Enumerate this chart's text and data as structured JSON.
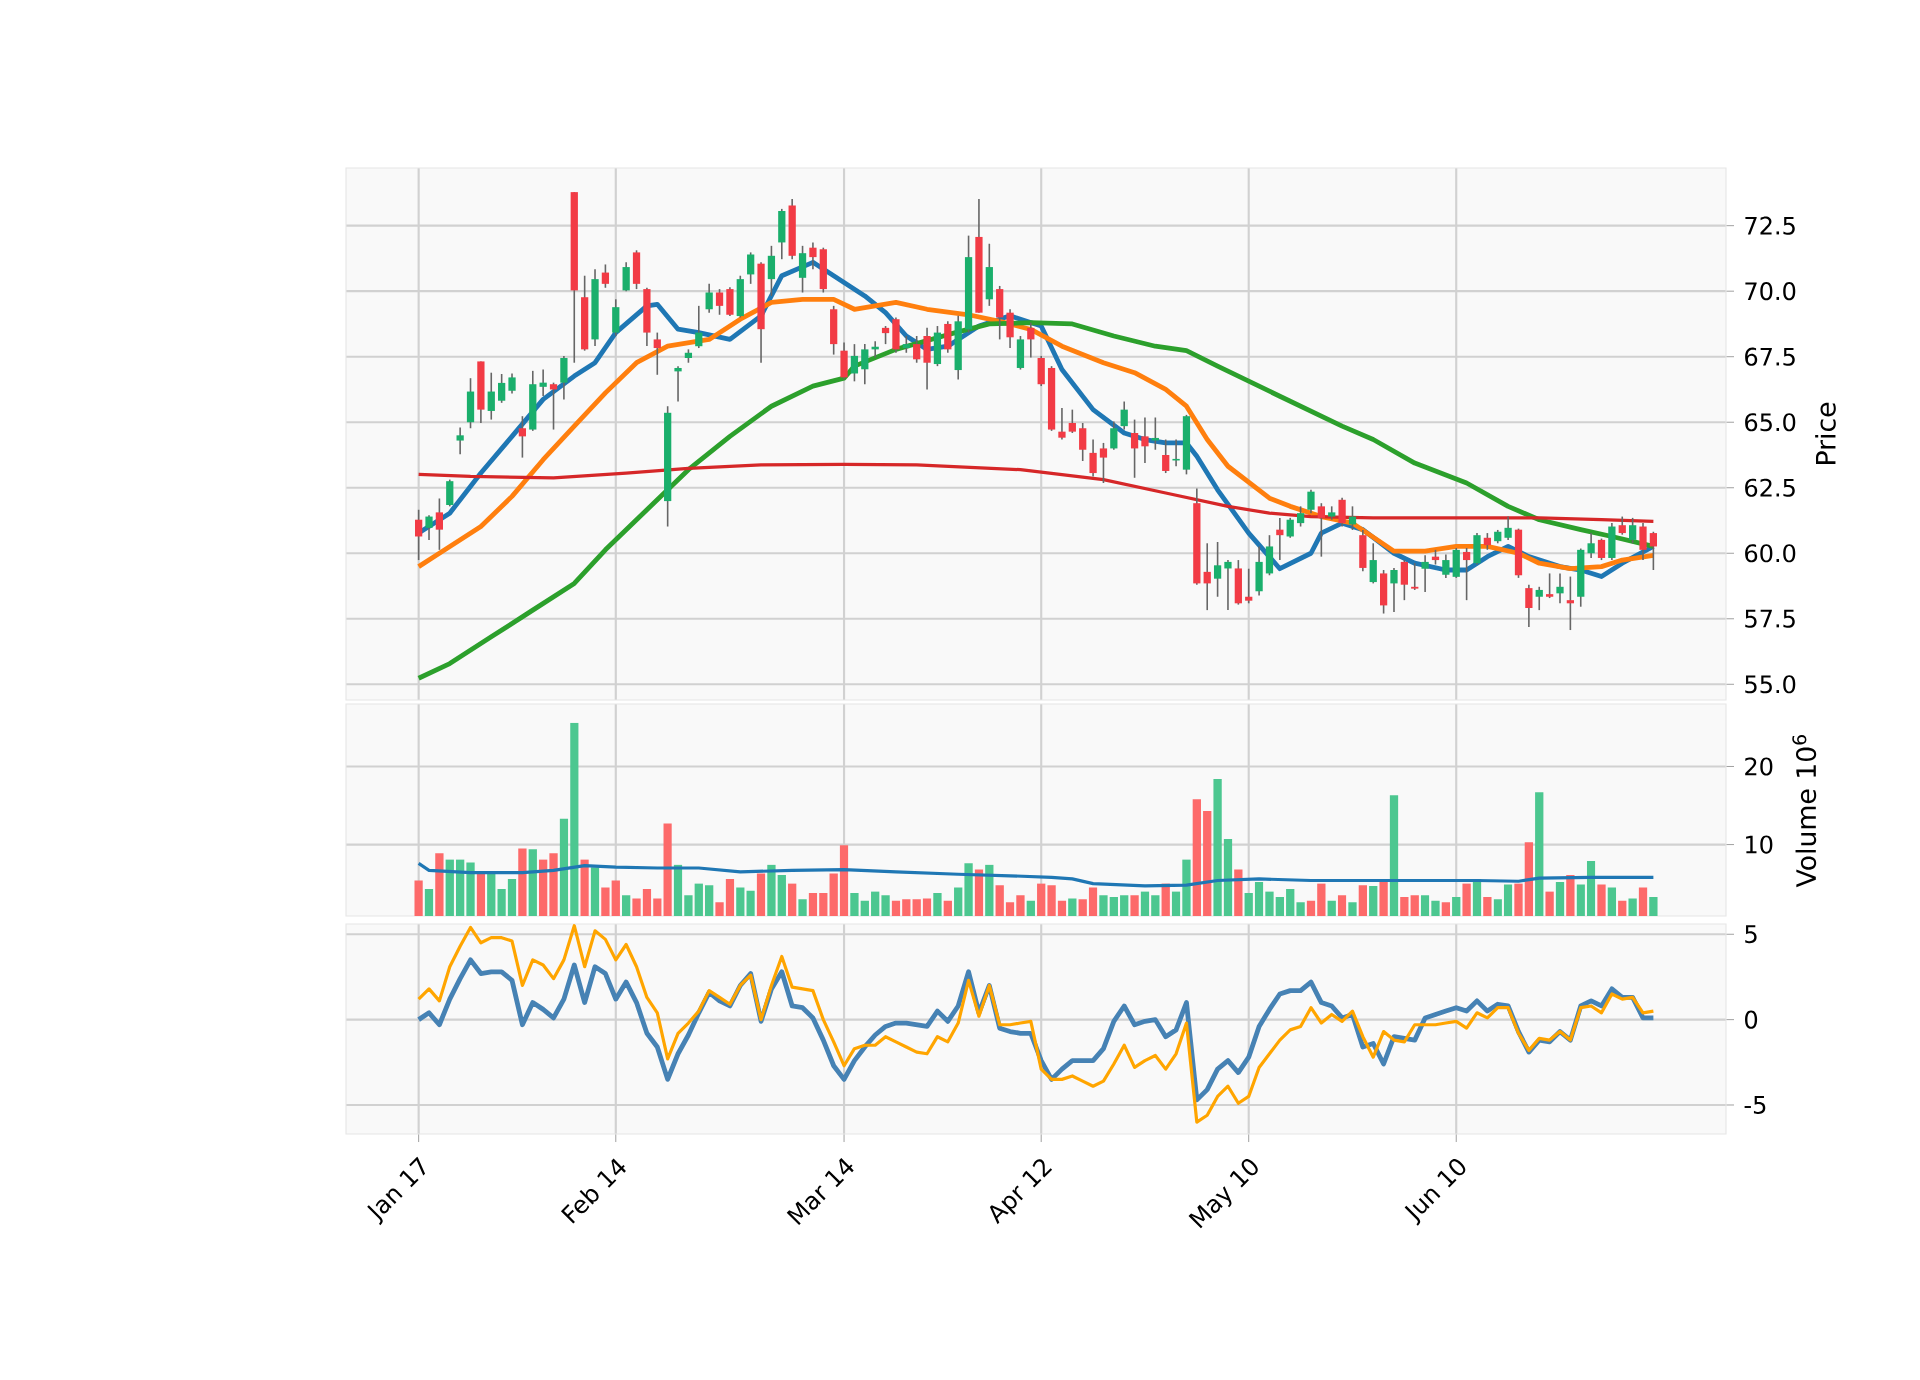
{
  "chart_data": [
    {
      "type": "candlestick",
      "ylabel": "Price",
      "tick_labels": "y",
      "grid": true,
      "categories": [
        null,
        null,
        null,
        null,
        null,
        null,
        null,
        null,
        null,
        null,
        null,
        null,
        null,
        null,
        null,
        null,
        null,
        null,
        null,
        null,
        null,
        null,
        null,
        null,
        null,
        null,
        null,
        null,
        null,
        null,
        null,
        null,
        null,
        null,
        null,
        null,
        null,
        null,
        null,
        null,
        null,
        null,
        null,
        null,
        null,
        null,
        null,
        null,
        null,
        null,
        null,
        null,
        null,
        null,
        null,
        null,
        null,
        null,
        null,
        null,
        null,
        null,
        null,
        null,
        null,
        null,
        null,
        null,
        null,
        null,
        null,
        null,
        null,
        null,
        null,
        null,
        null,
        null,
        null,
        null,
        null,
        null,
        null,
        null,
        null,
        null,
        null,
        null,
        null,
        null,
        null,
        null,
        null,
        null,
        null,
        null,
        null,
        null,
        null,
        null,
        null,
        null,
        null,
        null,
        null,
        null,
        null,
        null,
        null,
        null,
        null,
        null,
        null,
        null,
        null,
        null,
        null,
        null,
        null,
        null
      ],
      "ylim": [
        54.4,
        74.7
      ],
      "yticks": [
        {
          "value": 55,
          "label": "55.0"
        },
        57.5,
        {
          "value": 60,
          "label": "60.0"
        },
        62.5,
        {
          "value": 65,
          "label": "65.0"
        },
        67.5,
        {
          "value": 70,
          "label": "70.0"
        },
        72.5
      ],
      "ohlc": [
        [
          61.28,
          61.66,
          59.74,
          60.64
        ],
        [
          60.97,
          61.45,
          60.51,
          61.4
        ],
        [
          61.56,
          62.09,
          60.13,
          60.9
        ],
        [
          61.84,
          62.81,
          61.79,
          62.75
        ],
        [
          64.3,
          64.8,
          63.78,
          64.5
        ],
        [
          65.0,
          66.68,
          64.77,
          66.17
        ],
        [
          67.32,
          67.32,
          64.97,
          65.48
        ],
        [
          65.43,
          66.89,
          65.1,
          66.17
        ],
        [
          65.82,
          66.84,
          65.74,
          66.5
        ],
        [
          66.2,
          66.86,
          66.1,
          66.71
        ],
        [
          64.77,
          65.23,
          63.65,
          64.46
        ],
        [
          64.72,
          66.96,
          64.67,
          66.45
        ],
        [
          66.35,
          67.01,
          66.0,
          66.51
        ],
        [
          66.45,
          66.51,
          64.72,
          66.25
        ],
        [
          66.51,
          67.53,
          65.87,
          67.45
        ],
        [
          73.78,
          73.78,
          67.27,
          70.03
        ],
        [
          69.77,
          70.59,
          67.73,
          67.78
        ],
        [
          68.16,
          70.84,
          67.91,
          70.46
        ],
        [
          70.71,
          71.02,
          70.13,
          70.28
        ],
        [
          68.42,
          69.69,
          68.3,
          69.39
        ],
        [
          70.03,
          71.1,
          70.0,
          70.92
        ],
        [
          71.48,
          71.56,
          70.08,
          70.28
        ],
        [
          70.08,
          70.13,
          67.91,
          68.42
        ],
        [
          68.16,
          68.42,
          66.81,
          67.83
        ],
        [
          61.99,
          65.61,
          61.02,
          65.36
        ],
        [
          66.94,
          67.14,
          65.79,
          67.07
        ],
        [
          67.45,
          67.78,
          67.27,
          67.65
        ],
        [
          67.9,
          69.44,
          67.83,
          68.42
        ],
        [
          69.31,
          70.28,
          69.18,
          69.95
        ],
        [
          69.95,
          70.08,
          69.1,
          69.44
        ],
        [
          70.08,
          70.15,
          69.05,
          69.1
        ],
        [
          69.05,
          70.59,
          69.0,
          70.46
        ],
        [
          70.64,
          71.48,
          70.28,
          71.4
        ],
        [
          71.05,
          71.1,
          67.27,
          68.55
        ],
        [
          70.46,
          71.73,
          69.82,
          71.35
        ],
        [
          71.86,
          73.14,
          71.22,
          73.06
        ],
        [
          73.27,
          73.52,
          71.22,
          71.35
        ],
        [
          70.51,
          71.73,
          69.95,
          71.45
        ],
        [
          71.66,
          71.86,
          70.84,
          71.3
        ],
        [
          71.6,
          71.66,
          69.95,
          70.08
        ],
        [
          69.31,
          69.44,
          67.58,
          67.98
        ],
        [
          67.73,
          68.04,
          66.63,
          66.71
        ],
        [
          66.86,
          67.98,
          66.56,
          67.53
        ],
        [
          67.02,
          67.98,
          66.45,
          67.78
        ],
        [
          67.78,
          68.09,
          67.47,
          67.88
        ],
        [
          68.6,
          68.67,
          67.98,
          68.4
        ],
        [
          68.93,
          69.0,
          67.65,
          67.78
        ],
        [
          67.83,
          68.29,
          67.65,
          67.98
        ],
        [
          67.98,
          68.29,
          67.27,
          67.4
        ],
        [
          68.29,
          68.6,
          66.25,
          67.27
        ],
        [
          67.22,
          68.67,
          67.14,
          68.42
        ],
        [
          68.75,
          68.85,
          67.65,
          67.78
        ],
        [
          66.99,
          69.06,
          66.63,
          68.85
        ],
        [
          68.54,
          72.12,
          68.42,
          71.3
        ],
        [
          72.07,
          73.52,
          69.18,
          69.18
        ],
        [
          69.69,
          71.81,
          69.44,
          70.92
        ],
        [
          70.08,
          70.2,
          68.16,
          69.0
        ],
        [
          69.18,
          69.31,
          67.83,
          68.24
        ],
        [
          67.07,
          68.29,
          67.01,
          68.16
        ],
        [
          68.6,
          68.8,
          67.47,
          68.16
        ],
        [
          67.45,
          67.53,
          66.38,
          66.45
        ],
        [
          67.07,
          67.14,
          64.67,
          64.72
        ],
        [
          64.64,
          65.54,
          64.34,
          64.41
        ],
        [
          64.97,
          65.48,
          64.59,
          64.64
        ],
        [
          64.77,
          64.97,
          63.52,
          63.95
        ],
        [
          63.83,
          64.34,
          62.93,
          63.06
        ],
        [
          64.0,
          64.21,
          62.68,
          63.65
        ],
        [
          64.0,
          65.03,
          63.95,
          64.77
        ],
        [
          64.85,
          65.79,
          64.72,
          65.48
        ],
        [
          64.59,
          65.1,
          62.88,
          64.0
        ],
        [
          64.46,
          65.18,
          63.44,
          64.08
        ],
        [
          64.3,
          65.18,
          63.95,
          64.4
        ],
        [
          63.75,
          64.34,
          63.06,
          63.14
        ],
        [
          63.54,
          64.34,
          63.32,
          63.6
        ],
        [
          63.19,
          65.28,
          63.01,
          65.23
        ],
        [
          61.91,
          62.47,
          58.8,
          58.85
        ],
        [
          59.29,
          60.38,
          57.83,
          58.85
        ],
        [
          59.03,
          60.43,
          58.34,
          59.54
        ],
        [
          59.42,
          59.74,
          57.83,
          59.67
        ],
        [
          59.42,
          59.74,
          58.04,
          58.09
        ],
        [
          58.34,
          59.41,
          58.09,
          58.19
        ],
        [
          58.55,
          60.26,
          58.39,
          59.67
        ],
        [
          59.23,
          60.69,
          59.16,
          60.26
        ],
        [
          60.9,
          61.35,
          59.74,
          60.69
        ],
        [
          60.64,
          61.35,
          60.59,
          61.28
        ],
        [
          61.15,
          61.79,
          61.02,
          61.53
        ],
        [
          61.66,
          62.42,
          61.53,
          62.35
        ],
        [
          61.79,
          61.91,
          59.87,
          61.35
        ],
        [
          61.4,
          61.79,
          61.28,
          61.56
        ],
        [
          62.04,
          62.12,
          61.02,
          61.15
        ],
        [
          61.1,
          61.79,
          60.89,
          61.4
        ],
        [
          60.69,
          60.89,
          59.31,
          59.44
        ],
        [
          58.9,
          60.38,
          58.85,
          59.74
        ],
        [
          59.23,
          59.36,
          57.7,
          58.01
        ],
        [
          58.85,
          59.44,
          57.76,
          59.36
        ],
        [
          59.67,
          59.74,
          58.21,
          58.8
        ],
        [
          58.72,
          59.62,
          58.6,
          58.65
        ],
        [
          59.41,
          59.92,
          58.52,
          59.67
        ],
        [
          59.87,
          60.13,
          59.57,
          59.74
        ],
        [
          59.18,
          59.95,
          59.06,
          59.74
        ],
        [
          59.1,
          60.2,
          59.06,
          60.13
        ],
        [
          60.05,
          60.2,
          58.21,
          59.74
        ],
        [
          59.62,
          60.77,
          59.57,
          60.69
        ],
        [
          60.59,
          60.77,
          60.13,
          60.31
        ],
        [
          60.46,
          60.89,
          60.38,
          60.82
        ],
        [
          60.59,
          61.4,
          60.51,
          60.97
        ],
        [
          60.9,
          60.94,
          59.06,
          59.16
        ],
        [
          58.67,
          58.8,
          57.19,
          57.91
        ],
        [
          58.34,
          58.72,
          57.83,
          58.6
        ],
        [
          58.44,
          59.23,
          58.29,
          58.34
        ],
        [
          58.47,
          59.23,
          58.09,
          58.72
        ],
        [
          58.21,
          59.11,
          57.07,
          58.09
        ],
        [
          58.34,
          60.18,
          57.96,
          60.13
        ],
        [
          60.0,
          60.77,
          59.82,
          60.38
        ],
        [
          60.51,
          60.56,
          59.74,
          59.82
        ],
        [
          59.82,
          61.15,
          59.74,
          61.02
        ],
        [
          61.07,
          61.4,
          60.71,
          60.77
        ],
        [
          60.51,
          61.35,
          60.38,
          61.07
        ],
        [
          61.02,
          61.15,
          59.74,
          60.13
        ],
        [
          60.77,
          60.82,
          59.36,
          60.26
        ]
      ],
      "series": [
        {
          "type": "line",
          "color": "#1f77b4",
          "values": [
            60.77,
            null,
            null,
            61.53,
            null,
            null,
            63.06,
            null,
            null,
            64.46,
            null,
            null,
            65.87,
            null,
            null,
            66.76,
            null,
            67.27,
            null,
            68.42,
            null,
            null,
            69.44,
            69.5,
            null,
            68.55,
            null,
            68.42,
            null,
            null,
            68.16,
            null,
            null,
            69.06,
            null,
            70.59,
            null,
            null,
            71.1,
            null,
            null,
            70.33,
            null,
            69.82,
            null,
            69.18,
            null,
            68.29,
            null,
            67.78,
            null,
            67.9,
            null,
            null,
            68.67,
            null,
            null,
            69.06,
            null,
            null,
            68.67,
            null,
            67.01,
            null,
            null,
            65.48,
            null,
            null,
            64.59,
            null,
            64.34,
            null,
            64.21,
            null,
            64.21,
            63.7,
            null,
            62.42,
            null,
            null,
            60.77,
            null,
            null,
            59.41,
            null,
            null,
            60.0,
            60.77,
            null,
            61.15,
            null,
            60.9,
            null,
            null,
            60.0,
            null,
            59.62,
            null,
            null,
            59.36,
            null,
            59.36,
            null,
            59.87,
            null,
            60.26,
            null,
            59.87,
            null,
            null,
            59.49,
            null,
            59.36,
            null,
            59.11,
            null,
            59.62,
            null,
            null,
            60.26
          ]
        },
        {
          "type": "line",
          "color": "#ff7f0e",
          "values": [
            59.49,
            null,
            60.0,
            null,
            null,
            null,
            61.02,
            null,
            null,
            62.17,
            null,
            null,
            63.57,
            null,
            null,
            64.85,
            null,
            null,
            66.12,
            null,
            null,
            67.27,
            null,
            null,
            67.9,
            null,
            null,
            null,
            68.16,
            null,
            null,
            68.93,
            null,
            null,
            69.57,
            null,
            null,
            69.69,
            null,
            null,
            69.69,
            null,
            69.31,
            null,
            null,
            null,
            69.57,
            null,
            null,
            69.31,
            null,
            null,
            null,
            69.1,
            null,
            null,
            68.85,
            null,
            null,
            68.54,
            null,
            null,
            67.9,
            null,
            null,
            null,
            67.27,
            null,
            null,
            66.89,
            null,
            null,
            66.25,
            null,
            65.61,
            null,
            64.34,
            null,
            63.32,
            null,
            null,
            null,
            62.1,
            null,
            61.79,
            null,
            null,
            61.4,
            null,
            null,
            61.15,
            null,
            null,
            null,
            60.08,
            null,
            null,
            60.08,
            null,
            null,
            60.26,
            null,
            null,
            60.26,
            null,
            null,
            60.0,
            null,
            59.62,
            null,
            null,
            59.41,
            null,
            null,
            59.49,
            null,
            59.74,
            null,
            null,
            59.92
          ]
        },
        {
          "type": "line",
          "color": "#2ca02c",
          "values": [
            55.23,
            null,
            null,
            55.79,
            null,
            null,
            null,
            56.81,
            null,
            null,
            null,
            57.83,
            null,
            null,
            null,
            58.85,
            null,
            null,
            60.13,
            null,
            null,
            null,
            61.66,
            null,
            null,
            null,
            63.19,
            null,
            null,
            null,
            64.46,
            null,
            null,
            null,
            65.61,
            null,
            null,
            null,
            66.38,
            null,
            null,
            66.68,
            67.14,
            null,
            null,
            null,
            67.78,
            null,
            null,
            null,
            null,
            68.34,
            null,
            null,
            null,
            68.75,
            null,
            null,
            null,
            68.8,
            null,
            null,
            null,
            68.75,
            null,
            null,
            null,
            68.29,
            null,
            null,
            null,
            67.9,
            null,
            null,
            67.73,
            null,
            null,
            67.14,
            null,
            66.76,
            null,
            null,
            null,
            65.99,
            null,
            null,
            null,
            null,
            null,
            64.85,
            null,
            null,
            64.34,
            null,
            null,
            null,
            63.44,
            null,
            null,
            null,
            null,
            62.68,
            null,
            null,
            null,
            61.79,
            null,
            null,
            61.28,
            null,
            null,
            null,
            60.9,
            null,
            null,
            60.64,
            null,
            null,
            null,
            60.26
          ]
        },
        {
          "type": "line",
          "color": "#d62728",
          "values": [
            63.01,
            null,
            null,
            null,
            null,
            62.93,
            null,
            null,
            null,
            null,
            null,
            null,
            null,
            62.88,
            null,
            null,
            null,
            null,
            null,
            null,
            63.06,
            null,
            null,
            null,
            null,
            null,
            63.24,
            null,
            null,
            null,
            null,
            null,
            null,
            63.37,
            null,
            null,
            null,
            null,
            null,
            null,
            null,
            63.39,
            null,
            null,
            null,
            null,
            null,
            null,
            63.37,
            null,
            null,
            null,
            null,
            null,
            null,
            null,
            null,
            null,
            63.19,
            null,
            null,
            null,
            null,
            null,
            null,
            null,
            62.81,
            null,
            null,
            null,
            null,
            null,
            62.3,
            null,
            null,
            null,
            null,
            null,
            61.79,
            null,
            null,
            null,
            61.53,
            null,
            null,
            null,
            61.4,
            null,
            null,
            null,
            null,
            null,
            61.35,
            null,
            null,
            null,
            null,
            null,
            null,
            null,
            null,
            null,
            61.35,
            null,
            null,
            null,
            null,
            null,
            61.35,
            null,
            null,
            null,
            null,
            null,
            61.28,
            null,
            null,
            null,
            null,
            61.22
          ]
        }
      ]
    },
    {
      "type": "bar",
      "ylabel": "Volume  10$^{6}$",
      "tick_labels": "y",
      "grid": true,
      "categories": [
        null,
        null,
        null,
        null,
        null,
        null,
        null,
        null,
        null,
        null,
        null,
        null,
        null,
        null,
        null,
        null,
        null,
        null,
        null,
        null,
        null,
        null,
        null,
        null,
        null,
        null,
        null,
        null,
        null,
        null,
        null,
        null,
        null,
        null,
        null,
        null,
        null,
        null,
        null,
        null,
        null,
        null,
        null,
        null,
        null,
        null,
        null,
        null,
        null,
        null,
        null,
        null,
        null,
        null,
        null,
        null,
        null,
        null,
        null,
        null,
        null,
        null,
        null,
        null,
        null,
        null,
        null,
        null,
        null,
        null,
        null,
        null,
        null,
        null,
        null,
        null,
        null,
        null,
        null,
        null,
        null,
        null,
        null,
        null,
        null,
        null,
        null,
        null,
        null,
        null,
        null,
        null,
        null,
        null,
        null,
        null,
        null,
        null,
        null,
        null,
        null,
        null,
        null,
        null,
        null,
        null,
        null,
        null,
        null,
        null,
        null,
        null,
        null,
        null,
        null,
        null,
        null,
        null,
        null,
        null
      ],
      "ylim": [
        0.85,
        28
      ],
      "yticks": [
        10,
        20
      ],
      "values": [
        5.4,
        4.3,
        8.9,
        8.1,
        8.1,
        7.7,
        6.6,
        6.6,
        4.3,
        5.6,
        9.5,
        9.4,
        8.1,
        8.9,
        13.3,
        25.6,
        8.1,
        7.1,
        4.5,
        5.4,
        3.5,
        3.1,
        4.3,
        3.1,
        12.7,
        7.4,
        3.5,
        5.0,
        4.8,
        2.6,
        5.6,
        4.5,
        4.1,
        6.3,
        7.4,
        6.1,
        5.0,
        3.0,
        3.8,
        3.8,
        6.3,
        9.9,
        3.8,
        2.8,
        4.0,
        3.5,
        2.8,
        3.0,
        3.0,
        3.1,
        3.8,
        2.8,
        4.5,
        7.6,
        6.8,
        7.4,
        4.8,
        2.6,
        3.5,
        2.8,
        5.0,
        4.8,
        2.8,
        3.1,
        3.0,
        4.5,
        3.5,
        3.3,
        3.5,
        3.5,
        4.0,
        3.5,
        5.0,
        4.0,
        8.1,
        15.8,
        14.3,
        18.4,
        10.7,
        6.8,
        3.8,
        5.2,
        4.0,
        3.3,
        4.3,
        2.6,
        2.8,
        5.0,
        2.8,
        3.5,
        2.6,
        4.8,
        4.7,
        5.3,
        16.3,
        3.3,
        3.5,
        3.5,
        2.8,
        2.6,
        3.3,
        5.0,
        5.6,
        3.3,
        3.0,
        4.9,
        5.0,
        10.3,
        16.7,
        4.0,
        5.2,
        6.1,
        4.9,
        7.9,
        4.9,
        4.5,
        2.8,
        3.1,
        4.5,
        3.3
      ],
      "colors": [
        "#fd6a6a",
        "#4cc790",
        "#fd6a6a",
        "#4cc790",
        "#4cc790",
        "#4cc790",
        "#fd6a6a",
        "#4cc790",
        "#4cc790",
        "#4cc790",
        "#fd6a6a",
        "#4cc790",
        "#fd6a6a",
        "#fd6a6a",
        "#4cc790",
        "#4cc790",
        "#fd6a6a",
        "#4cc790",
        "#fd6a6a",
        "#fd6a6a",
        "#4cc790",
        "#fd6a6a",
        "#fd6a6a",
        "#fd6a6a",
        "#fd6a6a",
        "#4cc790",
        "#4cc790",
        "#4cc790",
        "#4cc790",
        "#fd6a6a",
        "#fd6a6a",
        "#4cc790",
        "#4cc790",
        "#fd6a6a",
        "#4cc790",
        "#4cc790",
        "#fd6a6a",
        "#4cc790",
        "#fd6a6a",
        "#fd6a6a",
        "#fd6a6a",
        "#fd6a6a",
        "#4cc790",
        "#4cc790",
        "#4cc790",
        "#4cc790",
        "#fd6a6a",
        "#fd6a6a",
        "#fd6a6a",
        "#fd6a6a",
        "#4cc790",
        "#fd6a6a",
        "#4cc790",
        "#4cc790",
        "#fd6a6a",
        "#4cc790",
        "#fd6a6a",
        "#fd6a6a",
        "#fd6a6a",
        "#4cc790",
        "#fd6a6a",
        "#fd6a6a",
        "#fd6a6a",
        "#4cc790",
        "#fd6a6a",
        "#fd6a6a",
        "#4cc790",
        "#4cc790",
        "#4cc790",
        "#fd6a6a",
        "#4cc790",
        "#4cc790",
        "#fd6a6a",
        "#4cc790",
        "#4cc790",
        "#fd6a6a",
        "#fd6a6a",
        "#4cc790",
        "#4cc790",
        "#fd6a6a",
        "#4cc790",
        "#4cc790",
        "#4cc790",
        "#4cc790",
        "#4cc790",
        "#4cc790",
        "#fd6a6a",
        "#fd6a6a",
        "#4cc790",
        "#fd6a6a",
        "#4cc790",
        "#fd6a6a",
        "#4cc790",
        "#fd6a6a",
        "#4cc790",
        "#fd6a6a",
        "#fd6a6a",
        "#4cc790",
        "#4cc790",
        "#fd6a6a",
        "#4cc790",
        "#fd6a6a",
        "#4cc790",
        "#fd6a6a",
        "#4cc790",
        "#4cc790",
        "#fd6a6a",
        "#fd6a6a",
        "#4cc790",
        "#fd6a6a",
        "#4cc790",
        "#fd6a6a",
        "#4cc790",
        "#4cc790",
        "#fd6a6a",
        "#4cc790",
        "#fd6a6a",
        "#4cc790",
        "#fd6a6a",
        "#4cc790"
      ],
      "series": [
        {
          "type": "line",
          "color": "#1f77b4",
          "values": [
            7.6,
            6.7,
            null,
            null,
            null,
            6.4,
            null,
            null,
            null,
            null,
            6.4,
            null,
            null,
            6.7,
            null,
            null,
            7.3,
            null,
            null,
            7.1,
            null,
            null,
            null,
            7.0,
            null,
            null,
            null,
            7.0,
            null,
            null,
            null,
            6.5,
            null,
            null,
            null,
            null,
            6.7,
            null,
            null,
            null,
            null,
            6.8,
            null,
            null,
            null,
            null,
            6.5,
            null,
            null,
            null,
            null,
            null,
            6.2,
            null,
            null,
            null,
            null,
            6.0,
            null,
            null,
            null,
            5.8,
            null,
            5.6,
            null,
            5.0,
            null,
            null,
            null,
            null,
            4.7,
            null,
            null,
            null,
            4.8,
            null,
            null,
            5.4,
            null,
            null,
            null,
            5.6,
            null,
            null,
            null,
            null,
            5.4,
            null,
            null,
            null,
            null,
            5.4,
            null,
            null,
            null,
            null,
            null,
            5.4,
            null,
            null,
            null,
            null,
            5.4,
            null,
            null,
            null,
            5.3,
            null,
            5.7,
            null,
            null,
            null,
            null,
            5.8,
            null,
            null,
            null,
            null,
            null,
            5.8
          ]
        }
      ]
    },
    {
      "type": "line",
      "grid": true,
      "categories": [
        "Jan 17",
        null,
        null,
        null,
        null,
        null,
        null,
        null,
        null,
        null,
        null,
        null,
        null,
        null,
        null,
        null,
        null,
        null,
        null,
        "Feb 14",
        null,
        null,
        null,
        null,
        null,
        null,
        null,
        null,
        null,
        null,
        null,
        null,
        null,
        null,
        null,
        null,
        null,
        null,
        null,
        null,
        null,
        "Mar 14",
        null,
        null,
        null,
        null,
        null,
        null,
        null,
        null,
        null,
        null,
        null,
        null,
        null,
        null,
        null,
        null,
        null,
        null,
        "Apr 12",
        null,
        null,
        null,
        null,
        null,
        null,
        null,
        null,
        null,
        null,
        null,
        null,
        null,
        null,
        null,
        null,
        null,
        null,
        null,
        "May 10",
        null,
        null,
        null,
        null,
        null,
        null,
        null,
        null,
        null,
        null,
        null,
        null,
        null,
        null,
        null,
        null,
        null,
        null,
        null,
        "Jun 10",
        null,
        null,
        null,
        null,
        null,
        null,
        null,
        null,
        null,
        null,
        null,
        null,
        null,
        null,
        null,
        null,
        null,
        null,
        null
      ],
      "ylim": [
        -6.7,
        5.6
      ],
      "yticks": [
        -5,
        0,
        5
      ],
      "series": [
        {
          "color": "#4682b4",
          "values": [
            0,
            0.4,
            -0.3,
            1.2,
            2.4,
            3.5,
            2.7,
            2.8,
            2.8,
            2.3,
            -0.3,
            1.0,
            0.6,
            0.1,
            1.2,
            3.2,
            1.0,
            3.1,
            2.7,
            1.2,
            2.2,
            1.0,
            -0.8,
            -1.6,
            -3.5,
            -2.0,
            -0.9,
            0.4,
            1.6,
            1.1,
            0.8,
            2.0,
            2.7,
            -0.1,
            1.8,
            2.8,
            0.8,
            0.7,
            0.1,
            -1.2,
            -2.7,
            -3.5,
            -2.4,
            -1.6,
            -0.9,
            -0.4,
            -0.2,
            -0.2,
            -0.3,
            -0.4,
            0.5,
            -0.1,
            0.8,
            2.8,
            0.4,
            2.0,
            -0.5,
            -0.7,
            -0.8,
            -0.8,
            -2.4,
            -3.5,
            -2.9,
            -2.4,
            -2.4,
            -2.4,
            -1.7,
            -0.1,
            0.8,
            -0.3,
            -0.1,
            0,
            -1.0,
            -0.6,
            1.0,
            -4.7,
            -4.1,
            -2.9,
            -2.4,
            -3.1,
            -2.2,
            -0.4,
            0.6,
            1.5,
            1.7,
            1.7,
            2.2,
            1.0,
            0.8,
            0.1,
            0.3,
            -1.6,
            -1.4,
            -2.6,
            -1.0,
            -1.1,
            -1.2,
            0.1,
            0.3,
            0.5,
            0.7,
            0.5,
            1.1,
            0.5,
            0.9,
            0.8,
            -0.7,
            -1.9,
            -1.2,
            -1.3,
            -0.7,
            -1.2,
            0.8,
            1.1,
            0.8,
            1.8,
            1.3,
            1.3,
            0.1,
            0.1
          ]
        },
        {
          "color": "#ffa500",
          "values": [
            1.2,
            1.8,
            1.1,
            3.1,
            4.3,
            5.4,
            4.5,
            4.8,
            4.8,
            4.6,
            2.0,
            3.5,
            3.2,
            2.4,
            3.5,
            5.5,
            3.1,
            5.2,
            4.7,
            3.5,
            4.4,
            3.1,
            1.3,
            0.4,
            -2.3,
            -0.8,
            -0.2,
            0.5,
            1.7,
            1.3,
            0.9,
            2.0,
            2.6,
            0,
            2.0,
            3.7,
            1.9,
            1.8,
            1.7,
            0,
            -1.3,
            -2.7,
            -1.7,
            -1.5,
            -1.5,
            -1.0,
            -1.3,
            -1.6,
            -1.9,
            -2.0,
            -1.0,
            -1.3,
            -0.2,
            2.3,
            0.2,
            2.0,
            -0.3,
            -0.3,
            -0.2,
            -0.1,
            -2.9,
            -3.5,
            -3.5,
            -3.3,
            -3.6,
            -3.9,
            -3.6,
            -2.6,
            -1.5,
            -2.8,
            -2.4,
            -2.1,
            -2.9,
            -2.0,
            -0.2,
            -6.0,
            -5.6,
            -4.5,
            -3.9,
            -4.9,
            -4.5,
            -2.8,
            -2.0,
            -1.2,
            -0.6,
            -0.4,
            0.7,
            -0.2,
            0.3,
            -0.1,
            0.5,
            -1.0,
            -2.2,
            -0.7,
            -1.2,
            -1.3,
            -0.3,
            -0.3,
            -0.3,
            -0.2,
            -0.1,
            -0.5,
            0.4,
            0.1,
            0.7,
            0.7,
            -0.8,
            -1.8,
            -1.1,
            -1.2,
            -0.7,
            -1.2,
            0.7,
            0.8,
            0.4,
            1.5,
            1.2,
            1.3,
            0.4,
            0.5
          ]
        }
      ]
    }
  ]
}
